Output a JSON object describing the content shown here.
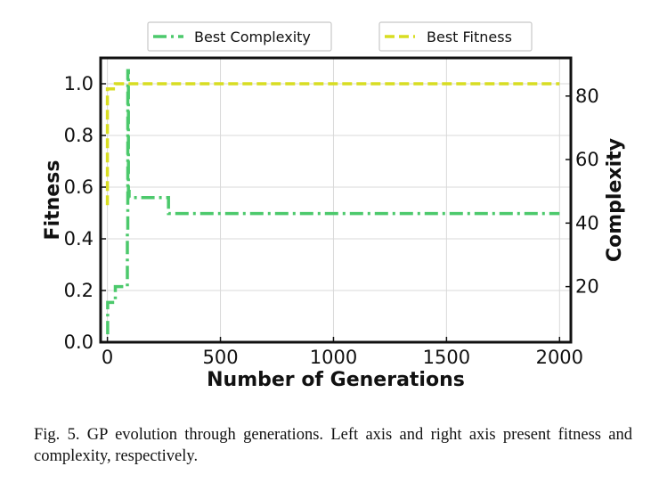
{
  "chart_data": {
    "type": "line",
    "xlabel": "Number of Generations",
    "ylabel": "Fitness",
    "y2label": "Complexity",
    "xlim": [
      -30,
      2050
    ],
    "ylim": [
      0,
      1.1
    ],
    "y2lim": [
      2.5,
      92
    ],
    "xticks": [
      "0",
      "500",
      "1000",
      "1500",
      "2000"
    ],
    "yticks": [
      "0.0",
      "0.2",
      "0.4",
      "0.6",
      "0.8",
      "1.0"
    ],
    "y2ticks": [
      "20",
      "40",
      "60",
      "80"
    ],
    "grid": true,
    "legend_placement": "top, outside plot",
    "series": [
      {
        "name": "Best Complexity",
        "axis": "right",
        "color": "#4cc96c",
        "style": "dash-dot",
        "x": [
          1,
          1,
          35,
          35,
          88,
          88,
          90,
          90,
          93,
          93,
          96,
          96,
          270,
          270,
          2000
        ],
        "y": [
          5,
          15,
          15,
          20,
          20,
          37,
          37,
          88,
          88,
          50,
          50,
          48,
          48,
          43,
          43
        ]
      },
      {
        "name": "Best Fitness",
        "axis": "left",
        "color": "#d8dd22",
        "style": "dashed",
        "x": [
          0,
          0,
          5,
          5,
          35,
          35,
          2000
        ],
        "y": [
          0.53,
          0.98,
          0.98,
          0.98,
          0.98,
          1.0,
          1.0
        ]
      }
    ]
  },
  "caption": "Fig. 5.  GP evolution through generations. Left axis and right axis present fitness and complexity, respectively."
}
